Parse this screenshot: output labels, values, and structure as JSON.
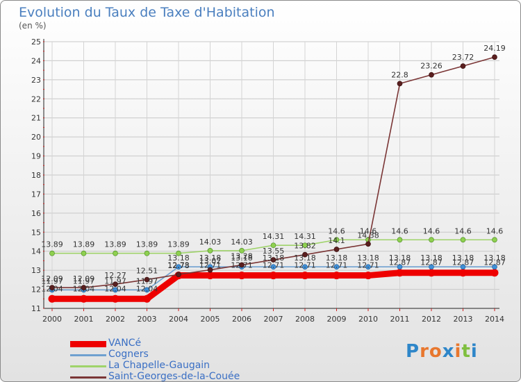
{
  "title": "Evolution du Taux de Taxe d'Habitation",
  "unit_label": "(en %)",
  "logo": {
    "text": "Proxiti",
    "colors": [
      "#2e86c9",
      "#e8772e",
      "#e8772e",
      "#2e86c9",
      "#e8772e",
      "#7fbf3f",
      "#2e86c9"
    ]
  },
  "chart_data": {
    "type": "line",
    "title": "Evolution du Taux de Taxe d'Habitation",
    "ylabel": "(en %)",
    "xlabel": "",
    "x": [
      "2000",
      "2001",
      "2002",
      "2003",
      "2004",
      "2005",
      "2006",
      "2007",
      "2008",
      "2009",
      "2010",
      "2011",
      "2012",
      "2013",
      "2014"
    ],
    "ylim": [
      11,
      25
    ],
    "yticks": [
      11,
      12,
      13,
      14,
      15,
      16,
      17,
      18,
      19,
      20,
      21,
      22,
      23,
      24,
      25
    ],
    "grid": true,
    "legend_position": "bottom-left",
    "series": [
      {
        "name": "VANCé",
        "color": "#ee0000",
        "values": [
          11.5,
          11.5,
          11.5,
          11.5,
          12.73,
          12.73,
          12.73,
          12.73,
          12.73,
          12.73,
          12.73,
          12.87,
          12.87,
          12.87,
          12.87
        ],
        "labels": []
      },
      {
        "name": "Cogners",
        "color": "#6fa0d0",
        "values": [
          11.97,
          11.97,
          11.97,
          11.97,
          13.18,
          13.18,
          13.18,
          13.18,
          13.18,
          13.18,
          13.18,
          13.18,
          13.18,
          13.18,
          13.18
        ],
        "labels": [
          "11.97",
          "11.97",
          "11.97",
          "11.97",
          "13.18",
          "13.18",
          "13.18",
          "13.18",
          "13.18",
          "13.18",
          "13.18",
          "13.18",
          "13.18",
          "13.18",
          "13.18"
        ]
      },
      {
        "name": "La Chapelle-Gaugain",
        "color": "#9fd36a",
        "values": [
          13.89,
          13.89,
          13.89,
          13.89,
          13.89,
          14.03,
          14.03,
          14.31,
          14.31,
          14.6,
          14.6,
          14.6,
          14.6,
          14.6,
          14.6
        ],
        "labels": [
          "13.89",
          "13.89",
          "13.89",
          "13.89",
          "13.89",
          "14.03",
          "14.03",
          "14.31",
          "14.31",
          "14.6",
          "14.6",
          "14.6",
          "14.6",
          "14.6",
          "14.6"
        ]
      },
      {
        "name": "Saint-Georges-de-la-Couée",
        "color": "#7a3535",
        "values": [
          12.09,
          12.09,
          12.27,
          12.51,
          12.78,
          13.02,
          13.28,
          13.55,
          13.82,
          14.1,
          14.38,
          22.8,
          23.26,
          23.72,
          24.19
        ],
        "labels": [
          "12.09",
          "12.09",
          "12.27",
          "12.51",
          "12.78",
          "13.02",
          "13.28",
          "13.55",
          "13.82",
          "14.1",
          "14.38",
          "22.8",
          "23.26",
          "23.72",
          "24.19"
        ]
      }
    ],
    "extra_labels": [
      "12.04",
      "12.04",
      "12.04",
      "12.04",
      "12.73",
      "12.71",
      "12.71",
      "12.71",
      "12.71",
      "12.71",
      "12.71",
      "12.87",
      "12.87",
      "12.87",
      "12.87"
    ]
  }
}
